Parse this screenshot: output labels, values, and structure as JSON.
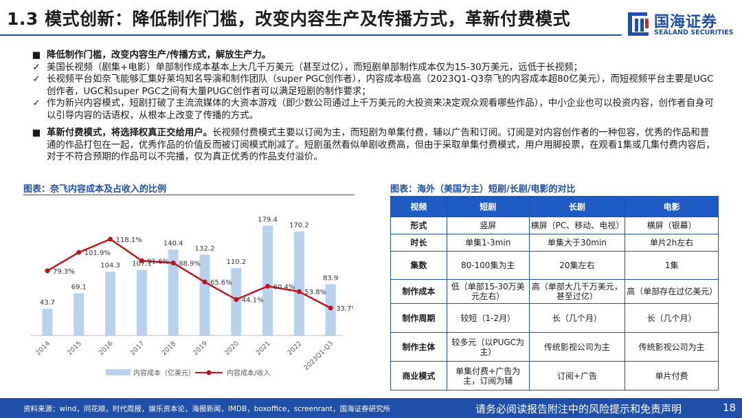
{
  "header": {
    "title": "1.3 模式创新：降低制作门槛，改变内容生产及传播方式，革新付费模式",
    "logo_cn": "国海证券",
    "logo_en": "SEALAND SECURITIES",
    "brand_color": "#1f4fa8"
  },
  "bullets": [
    {
      "mark": "■",
      "text": "降低制作门槛，改变内容生产/传播方式，解放生产力。",
      "bold": true
    },
    {
      "mark": "✓",
      "text": "美国长视频（剧集+电影）单部制作成本基本上大几千万美元（甚至过亿），而短剧单部制作成本仅为15-30万美元，远低于长视频；"
    },
    {
      "mark": "✓",
      "text": "长视频平台如奈飞能够汇集好莱坞知名导演和制作团队（super PGC创作者），内容成本极高（2023Q1-Q3奈飞的内容成本超80亿美元），而短视频平台主要是UGC创作者，UGC和super PGC之间有大量PUGC创作者可以满足短剧的制作要求；"
    },
    {
      "mark": "✓",
      "text": "作为新兴内容模式，短剧打破了主流流媒体的大资本游戏（即少数公司通过上千万美元的大投资来决定观众观看哪些作品），中小企业也可以投资内容，创作者自身可以引导内容的话语权，从根本上改变了传播的方式。"
    },
    {
      "mark": "■",
      "bold_prefix": "革新付费模式，将选择权真正交给用户。",
      "text": "长视频付费模式主要以订阅为主，而短剧为单集付费，辅以广告和订阅。订阅是对内容创作者的一种包容，优秀的作品和普通的作品打包在一起，优秀作品的价值反而被订阅模式削减了。短剧虽然看似单剧收费高，但由于采取单集付费模式，用户用脚投票，在观看1集或几集付费内容后，对于不符合预期的作品可以不完播，仅为真正优秀的作品支付溢价。"
    }
  ],
  "figure_left_title": "图表：奈飞内容成本及占收入的比例",
  "figure_right_title": "图表：海外（美国为主）短剧/长剧/电影的对比",
  "chart_data": {
    "type": "bar",
    "categories": [
      "2014",
      "2015",
      "2016",
      "2017",
      "2018",
      "2019",
      "2020",
      "2021",
      "2022",
      "2023Q1-Q3"
    ],
    "series": [
      {
        "name": "内容成本（亿美元）",
        "type": "bar",
        "values": [
          43.7,
          69.1,
          104.3,
          107.1,
          140.4,
          132.2,
          110.2,
          179.4,
          170.2,
          83.9
        ],
        "labels": [
          "43.7",
          "69.1",
          "104.3",
          "107.1",
          "140.4",
          "132.2",
          "110.2",
          "179.4",
          "170.2",
          "83.9"
        ],
        "color": "#b6d2ee"
      },
      {
        "name": "内容成本/收入",
        "type": "line",
        "values": [
          79.3,
          101.9,
          118.1,
          91.6,
          88.9,
          65.6,
          44.1,
          60.4,
          53.8,
          33.7
        ],
        "labels": [
          "79.3%",
          "101.9%",
          "118.1%",
          "91.6%",
          "88.9%",
          "65.6%",
          "44.1%",
          "60.4%",
          "53.8%",
          "33.7%"
        ],
        "color": "#c0141c"
      }
    ],
    "bar_ylim": [
      0,
      200
    ],
    "line_ylim": [
      0,
      150
    ],
    "legend": "bottom",
    "grid": false
  },
  "comparison_table": {
    "headers": [
      "视频",
      "短剧",
      "长剧",
      "电影"
    ],
    "rows": [
      {
        "label": "形式",
        "cells": [
          "竖屏",
          "横屏（PC、移动、电视）",
          "横屏（银幕）"
        ]
      },
      {
        "label": "时长",
        "cells": [
          "单集1-3min",
          "单集大于30min",
          "单片2h左右"
        ]
      },
      {
        "label": "集数",
        "cells": [
          "80-100集为主",
          "20集左右",
          "1集"
        ]
      },
      {
        "label": "制作成本",
        "cells": [
          "低（单部15-30万美元左右）",
          "高（单部大几千万美元，甚至过亿）",
          "高（单部存在过亿美元）"
        ]
      },
      {
        "label": "制作周期",
        "cells": [
          "较短（1-2月）",
          "长（几个月）",
          "长（几个月）"
        ]
      },
      {
        "label": "制作主体",
        "cells": [
          "较多元（以PUGC为主）",
          "传统影视公司为主",
          "传统影视公司为主"
        ]
      },
      {
        "label": "商业模式",
        "cells": [
          "单集付费+广告为主，订阅为辅",
          "订阅+广告",
          "单片付费"
        ]
      }
    ]
  },
  "footer": {
    "source": "资料来源：wind，同花顺，时代周报，娱乐资本论，海报新闻，IMDB，boxoffice，screenrant，国海证券研究所",
    "disclaimer": "请务必阅读报告附注中的风险提示和免责声明",
    "page_number": "18"
  }
}
